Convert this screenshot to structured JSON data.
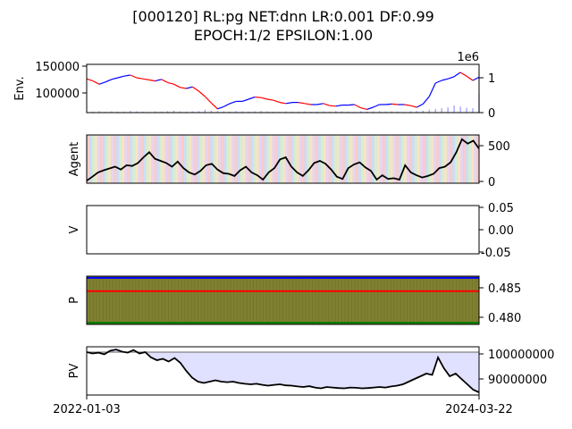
{
  "figure": {
    "title_line1": "[000120] RL:pg NET:dnn LR:0.001 DF:0.99",
    "title_line2": "EPOCH:1/2 EPSILON:1.00",
    "x_start_label": "2022-01-03",
    "x_end_label": "2024-03-22"
  },
  "chart_data": [
    {
      "panel": "env",
      "type": "line",
      "ylabel": "Env.",
      "y_ticks": [
        "100000",
        "150000"
      ],
      "y_tick_values": [
        100000,
        150000
      ],
      "ylim": [
        65000,
        155000
      ],
      "y2_ticks": [
        "0",
        "1"
      ],
      "y2_offset_label": "1e6",
      "y2_tick_values": [
        0,
        1000000
      ],
      "y2lim": [
        0,
        1400000
      ],
      "x_range": [
        "2022-01-03",
        "2024-03-22"
      ],
      "price_series": [
        128000,
        124000,
        118000,
        122000,
        127000,
        130000,
        133000,
        135000,
        130000,
        128000,
        126000,
        124000,
        127000,
        121000,
        118000,
        112000,
        110000,
        113000,
        105000,
        95000,
        83000,
        72000,
        76000,
        82000,
        86000,
        86000,
        90000,
        94000,
        93000,
        90000,
        88000,
        84000,
        82000,
        84000,
        84000,
        82000,
        80000,
        80000,
        82000,
        78000,
        77000,
        79000,
        79000,
        80000,
        74000,
        71000,
        75000,
        80000,
        80000,
        81000,
        80000,
        80000,
        78000,
        75000,
        81000,
        95000,
        120000,
        125000,
        128000,
        132000,
        140000,
        133000,
        125000,
        131000
      ],
      "volume_series": [
        0.05,
        0.04,
        0.06,
        0.03,
        0.05,
        0.04,
        0.04,
        0.07,
        0.05,
        0.04,
        0.03,
        0.05,
        0.04,
        0.06,
        0.08,
        0.05,
        0.04,
        0.05,
        0.06,
        0.12,
        0.08,
        0.06,
        0.05,
        0.04,
        0.06,
        0.05,
        0.04,
        0.05,
        0.07,
        0.05,
        0.04,
        0.03,
        0.05,
        0.04,
        0.04,
        0.05,
        0.03,
        0.04,
        0.05,
        0.04,
        0.06,
        0.05,
        0.04,
        0.03,
        0.05,
        0.04,
        0.05,
        0.06,
        0.04,
        0.05,
        0.04,
        0.03,
        0.05,
        0.06,
        0.08,
        0.12,
        0.15,
        0.18,
        0.22,
        0.3,
        0.25,
        0.2,
        0.18,
        0.8
      ],
      "colors": {
        "price_up": "#0000ff",
        "price_down": "#ff0000",
        "volume": "#8080ff"
      }
    },
    {
      "panel": "agent",
      "type": "line",
      "ylabel": "Agent",
      "y2_ticks": [
        "0",
        "500"
      ],
      "y2_tick_values": [
        0,
        500
      ],
      "ylim": [
        -30,
        640
      ],
      "x_range": [
        "2022-01-03",
        "2024-03-22"
      ],
      "values": [
        5,
        60,
        120,
        150,
        175,
        200,
        160,
        220,
        210,
        250,
        330,
        400,
        310,
        280,
        250,
        200,
        270,
        180,
        120,
        90,
        140,
        220,
        240,
        160,
        110,
        100,
        70,
        150,
        200,
        120,
        80,
        20,
        120,
        180,
        300,
        330,
        200,
        120,
        70,
        150,
        250,
        280,
        240,
        160,
        60,
        30,
        180,
        230,
        260,
        190,
        140,
        20,
        80,
        30,
        40,
        20,
        220,
        120,
        80,
        50,
        70,
        100,
        180,
        200,
        260,
        400,
        580,
        520,
        560,
        450
      ],
      "colors": {
        "line": "#000000",
        "stripes": [
          "#f4c2c2",
          "#c2d4f4",
          "#cfe8c6",
          "#f2e0b8",
          "#e3cbee"
        ]
      }
    },
    {
      "panel": "v",
      "type": "line",
      "ylabel": "V",
      "y2_ticks": [
        "0.05",
        "0.00",
        "-0.05"
      ],
      "y2_tick_values": [
        0.05,
        0.0,
        -0.05
      ],
      "ylim": [
        -0.055,
        0.055
      ],
      "values": []
    },
    {
      "panel": "p",
      "type": "area",
      "ylabel": "P",
      "y2_ticks": [
        "0.485",
        "0.480"
      ],
      "y2_tick_values": [
        0.485,
        0.48
      ],
      "ylim": [
        0.4787,
        0.4871
      ],
      "series": [
        {
          "name": "blue",
          "value": 0.4868,
          "color": "#0000ff"
        },
        {
          "name": "red",
          "value": 0.4845,
          "color": "#ff0000"
        },
        {
          "name": "green",
          "value": 0.479,
          "color": "#008000"
        }
      ],
      "colors": {
        "fill": "#808032",
        "stripe": "#6e6e20"
      }
    },
    {
      "panel": "pv",
      "type": "area",
      "ylabel": "PV",
      "y2_ticks": [
        "100000000",
        "90000000"
      ],
      "y2_tick_values": [
        100000000,
        90000000
      ],
      "ylim": [
        84000000,
        102000000
      ],
      "baseline": 100000000,
      "values": [
        100000000,
        99500000,
        99800000,
        99200000,
        100500000,
        101000000,
        100200000,
        99800000,
        100800000,
        99500000,
        100000000,
        98000000,
        97000000,
        97500000,
        96500000,
        97800000,
        96000000,
        93000000,
        90500000,
        89000000,
        88500000,
        89000000,
        89500000,
        89000000,
        88800000,
        89000000,
        88500000,
        88200000,
        88000000,
        88200000,
        87800000,
        87500000,
        87800000,
        88000000,
        87600000,
        87500000,
        87200000,
        87000000,
        87300000,
        86800000,
        86500000,
        87000000,
        86800000,
        86600000,
        86500000,
        86800000,
        86700000,
        86500000,
        86600000,
        86800000,
        87000000,
        86800000,
        87200000,
        87500000,
        88000000,
        89000000,
        90000000,
        91000000,
        92000000,
        91500000,
        98000000,
        94000000,
        91000000,
        92000000,
        90000000,
        88000000,
        86000000,
        85000000
      ],
      "colors": {
        "line": "#000000",
        "fill": "#e0e0ff",
        "baseline": "#808080"
      }
    }
  ]
}
